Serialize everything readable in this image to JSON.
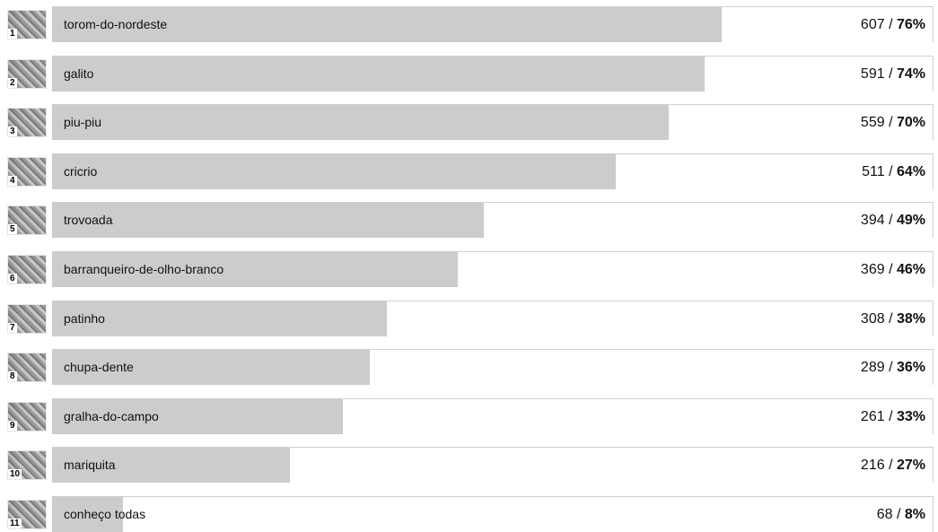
{
  "chart_data": {
    "type": "bar",
    "orientation": "horizontal",
    "series": [
      {
        "rank": "1",
        "label": "torom-do-nordeste",
        "count": "607",
        "percent_label": "76%",
        "percent": 76
      },
      {
        "rank": "2",
        "label": "galito",
        "count": "591",
        "percent_label": "74%",
        "percent": 74
      },
      {
        "rank": "3",
        "label": "piu-piu",
        "count": "559",
        "percent_label": "70%",
        "percent": 70
      },
      {
        "rank": "4",
        "label": "cricrio",
        "count": "511",
        "percent_label": "64%",
        "percent": 64
      },
      {
        "rank": "5",
        "label": "trovoada",
        "count": "394",
        "percent_label": "49%",
        "percent": 49
      },
      {
        "rank": "6",
        "label": "barranqueiro-de-olho-branco",
        "count": "369",
        "percent_label": "46%",
        "percent": 46
      },
      {
        "rank": "7",
        "label": "patinho",
        "count": "308",
        "percent_label": "38%",
        "percent": 38
      },
      {
        "rank": "8",
        "label": "chupa-dente",
        "count": "289",
        "percent_label": "36%",
        "percent": 36
      },
      {
        "rank": "9",
        "label": "gralha-do-campo",
        "count": "261",
        "percent_label": "33%",
        "percent": 33
      },
      {
        "rank": "10",
        "label": "mariquita",
        "count": "216",
        "percent_label": "27%",
        "percent": 27
      },
      {
        "rank": "11",
        "label": "conheço todas",
        "count": "68",
        "percent_label": "8%",
        "percent": 8
      }
    ],
    "value_separator": " / ",
    "xlim": [
      0,
      100
    ]
  },
  "colors": {
    "bar_fill": "#cccccc",
    "track_border": "#cfcfcf",
    "text": "#111111"
  }
}
